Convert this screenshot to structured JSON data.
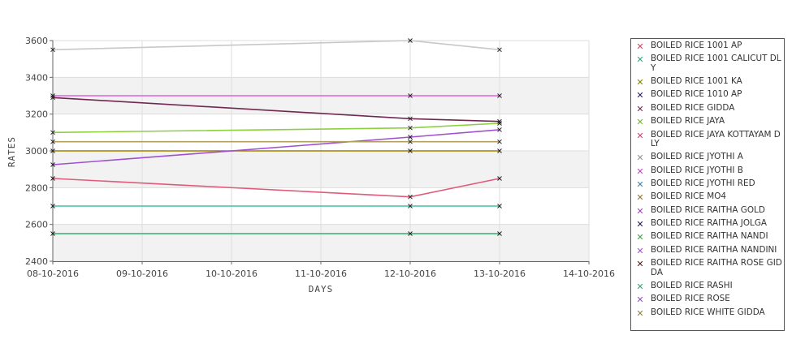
{
  "chart_data": {
    "type": "line",
    "xlabel": "DAYS",
    "ylabel": "RATES",
    "ylim": [
      2400,
      3600
    ],
    "yticks": [
      "2400",
      "2600",
      "2800",
      "3000",
      "3200",
      "3400",
      "3600"
    ],
    "xticks": [
      "08-10-2016",
      "09-10-2016",
      "10-10-2016",
      "11-10-2016",
      "12-10-2016",
      "13-10-2016",
      "14-10-2016"
    ],
    "xlim": [
      "08-10-2016",
      "14-10-2016"
    ],
    "grid": true,
    "legend_position": "right",
    "series": [
      {
        "name": "BOILED RICE 1001 AP",
        "color": "#e05a7a",
        "points": [
          [
            "08-10-2016",
            2850
          ],
          [
            "12-10-2016",
            2750
          ],
          [
            "13-10-2016",
            2850
          ]
        ]
      },
      {
        "name": "BOILED RICE 1001 CALICUT DLY",
        "color": "#40c0a0",
        "points": [
          [
            "08-10-2016",
            2700
          ],
          [
            "12-10-2016",
            2700
          ],
          [
            "13-10-2016",
            2700
          ]
        ]
      },
      {
        "name": "BOILED RICE 1001 KA",
        "color": "#a08000",
        "points": [
          [
            "08-10-2016",
            3000
          ],
          [
            "12-10-2016",
            3000
          ],
          [
            "13-10-2016",
            3000
          ]
        ]
      },
      {
        "name": "BOILED RICE 1010 AP",
        "color": "#202060",
        "points": []
      },
      {
        "name": "BOILED RICE GIDDA",
        "color": "#702850",
        "points": [
          [
            "08-10-2016",
            3290
          ],
          [
            "12-10-2016",
            3175
          ],
          [
            "13-10-2016",
            3160
          ]
        ]
      },
      {
        "name": "BOILED RICE JAYA",
        "color": "#8cd040",
        "points": [
          [
            "08-10-2016",
            3100
          ],
          [
            "12-10-2016",
            3125
          ],
          [
            "13-10-2016",
            3150
          ]
        ]
      },
      {
        "name": "BOILED RICE JAYA KOTTAYAM DLY",
        "color": "#d04070",
        "points": []
      },
      {
        "name": "BOILED RICE JYOTHI A",
        "color": "#c8c8c8",
        "points": [
          [
            "08-10-2016",
            3550
          ],
          [
            "12-10-2016",
            3600
          ],
          [
            "13-10-2016",
            3550
          ]
        ]
      },
      {
        "name": "BOILED RICE JYOTHI B",
        "color": "#e060e0",
        "points": [
          [
            "08-10-2016",
            3300
          ],
          [
            "12-10-2016",
            3300
          ],
          [
            "13-10-2016",
            3300
          ]
        ]
      },
      {
        "name": "BOILED RICE JYOTHI RED",
        "color": "#4080a0",
        "points": []
      },
      {
        "name": "BOILED RICE MO4",
        "color": "#907030",
        "points": []
      },
      {
        "name": "BOILED RICE RAITHA GOLD",
        "color": "#a040c0",
        "points": []
      },
      {
        "name": "BOILED RICE RAITHA JOLGA",
        "color": "#1a1a4a",
        "points": []
      },
      {
        "name": "BOILED RICE RAITHA NANDI",
        "color": "#40a040",
        "points": []
      },
      {
        "name": "BOILED RICE RAITHA NANDINI",
        "color": "#a050d0",
        "points": [
          [
            "08-10-2016",
            2925
          ],
          [
            "12-10-2016",
            3075
          ],
          [
            "13-10-2016",
            3115
          ]
        ]
      },
      {
        "name": "BOILED RICE RAITHA ROSE GIDDA",
        "color": "#4a2010",
        "points": []
      },
      {
        "name": "BOILED RICE RASHI",
        "color": "#30b070",
        "points": [
          [
            "08-10-2016",
            2550
          ],
          [
            "12-10-2016",
            2550
          ],
          [
            "13-10-2016",
            2550
          ]
        ]
      },
      {
        "name": "BOILED RICE ROSE",
        "color": "#9050c0",
        "points": []
      },
      {
        "name": "BOILED RICE WHITE GIDDA",
        "color": "#b0a060",
        "points": [
          [
            "08-10-2016",
            3050
          ],
          [
            "12-10-2016",
            3050
          ],
          [
            "13-10-2016",
            3050
          ]
        ]
      }
    ]
  },
  "legend": {
    "items": [
      {
        "label": "BOILED RICE 1001 AP",
        "color": "#d04060"
      },
      {
        "label": "BOILED RICE 1001 CALICUT DLY",
        "color": "#30a080"
      },
      {
        "label": "BOILED RICE 1001 KA",
        "color": "#808000"
      },
      {
        "label": "BOILED RICE 1010 AP",
        "color": "#202060"
      },
      {
        "label": "BOILED RICE GIDDA",
        "color": "#702850"
      },
      {
        "label": "BOILED RICE JAYA",
        "color": "#70b030"
      },
      {
        "label": "BOILED RICE JAYA KOTTAYAM DLY",
        "color": "#d04070"
      },
      {
        "label": "BOILED RICE JYOTHI A",
        "color": "#909090"
      },
      {
        "label": "BOILED RICE JYOTHI B",
        "color": "#c040c0"
      },
      {
        "label": "BOILED RICE JYOTHI RED",
        "color": "#4080a0"
      },
      {
        "label": "BOILED RICE MO4",
        "color": "#907030"
      },
      {
        "label": "BOILED RICE RAITHA GOLD",
        "color": "#a040c0"
      },
      {
        "label": "BOILED RICE RAITHA JOLGA",
        "color": "#1a1a4a"
      },
      {
        "label": "BOILED RICE RAITHA NANDI",
        "color": "#40a040"
      },
      {
        "label": "BOILED RICE RAITHA NANDINI",
        "color": "#a050d0"
      },
      {
        "label": "BOILED RICE RAITHA ROSE GIDDA",
        "color": "#4a2010"
      },
      {
        "label": "BOILED RICE RASHI",
        "color": "#30a070"
      },
      {
        "label": "BOILED RICE ROSE",
        "color": "#9050c0"
      },
      {
        "label": "BOILED RICE WHITE GIDDA",
        "color": "#908040"
      }
    ]
  }
}
